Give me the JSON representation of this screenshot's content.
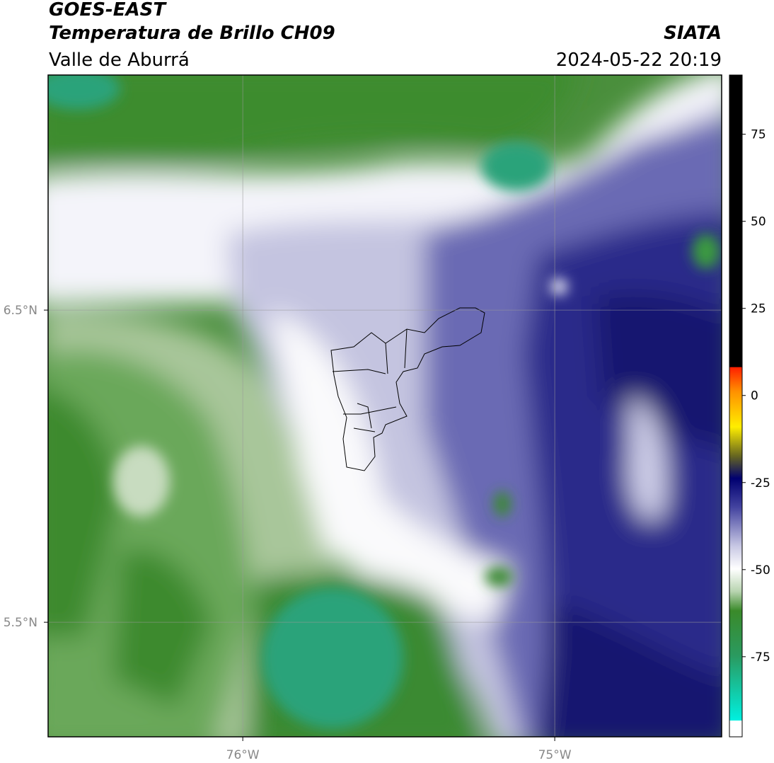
{
  "header": {
    "title": "GOES-EAST",
    "subtitle": "Temperatura de Brillo CH09",
    "region": "Valle de Aburrá",
    "source": "SIATA",
    "datetime": "2024-05-22 20:19"
  },
  "map": {
    "xlim": [
      -76.624,
      -74.465
    ],
    "ylim": [
      5.133,
      7.253
    ],
    "xticks": [
      {
        "value": -76,
        "label": "76°W"
      },
      {
        "value": -75,
        "label": "75°W"
      }
    ],
    "yticks": [
      {
        "value": 6.5,
        "label": "6.5°N"
      },
      {
        "value": 5.5,
        "label": "5.5°N"
      }
    ],
    "grid": true
  },
  "colorbar": {
    "lim": [
      -98,
      92
    ],
    "ticks": [
      75,
      50,
      25,
      0,
      -25,
      -50,
      -75
    ]
  }
}
